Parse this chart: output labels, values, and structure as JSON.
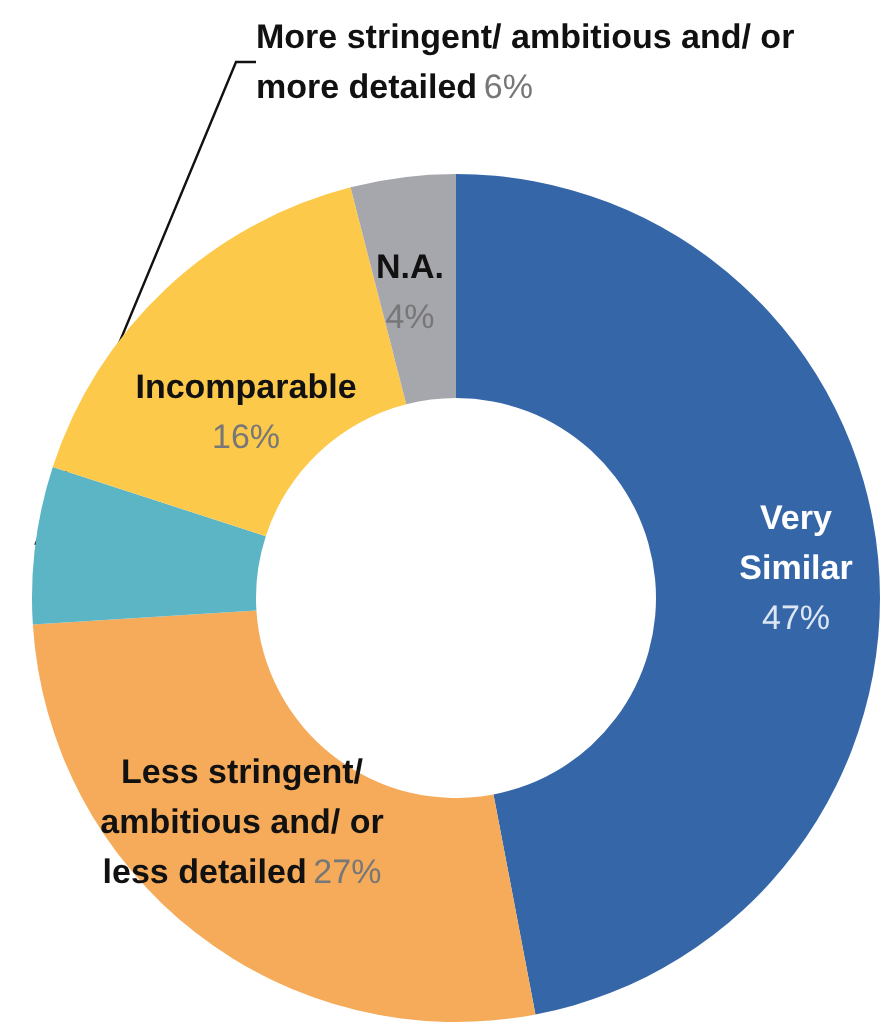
{
  "chart_data": {
    "type": "donut",
    "categories": [
      "Very Similar",
      "Less stringent/ ambitious and/ or less detailed",
      "More stringent/ ambitious and/ or more detailed",
      "Incomparable",
      "N.A."
    ],
    "values": [
      47,
      27,
      6,
      16,
      4
    ],
    "value_labels": [
      "47%",
      "27%",
      "6%",
      "16%",
      "4%"
    ],
    "colors": [
      "#3567a8",
      "#f5ab5a",
      "#5bb5c5",
      "#fdc94a",
      "#a6a6ad"
    ],
    "legend": false
  }
}
